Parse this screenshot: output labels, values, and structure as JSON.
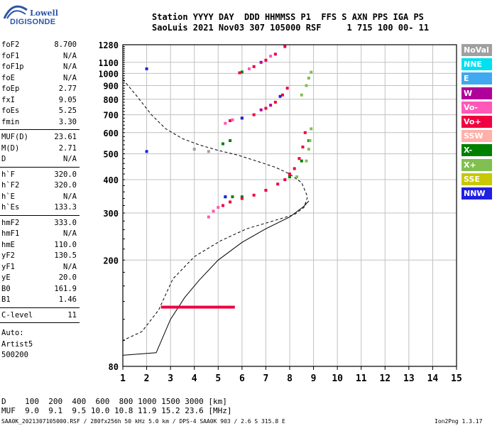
{
  "logo": {
    "line1": "Lowell",
    "line2": "DIGISONDE"
  },
  "header": {
    "row1": "Station YYYY DAY  DDD HHMMSS P1  FFS S AXN PPS IGA PS",
    "row2": "SaoLuis 2021 Nov03 307 105000 RSF     1 715 100 00- 11"
  },
  "params": [
    {
      "group": [
        {
          "k": "foF2",
          "v": "8.700"
        },
        {
          "k": "foF1",
          "v": "N/A"
        },
        {
          "k": "foF1p",
          "v": "N/A"
        },
        {
          "k": "foE",
          "v": "N/A"
        },
        {
          "k": "foEp",
          "v": "2.77"
        },
        {
          "k": "fxI",
          "v": "9.05"
        },
        {
          "k": "foEs",
          "v": "5.25"
        },
        {
          "k": "fmin",
          "v": "3.30"
        }
      ]
    },
    {
      "group": [
        {
          "k": "MUF(D)",
          "v": "23.61"
        },
        {
          "k": "M(D)",
          "v": "2.71"
        },
        {
          "k": "D",
          "v": "N/A"
        }
      ]
    },
    {
      "group": [
        {
          "k": "h`F",
          "v": "320.0"
        },
        {
          "k": "h`F2",
          "v": "320.0"
        },
        {
          "k": "h`E",
          "v": "N/A"
        },
        {
          "k": "h`Es",
          "v": "133.3"
        }
      ]
    },
    {
      "group": [
        {
          "k": "hmF2",
          "v": "333.0"
        },
        {
          "k": "hmF1",
          "v": "N/A"
        },
        {
          "k": "hmE",
          "v": "110.0"
        },
        {
          "k": "yF2",
          "v": "130.5"
        },
        {
          "k": "yF1",
          "v": "N/A"
        },
        {
          "k": "yE",
          "v": "20.0"
        },
        {
          "k": "B0",
          "v": "161.9"
        },
        {
          "k": "B1",
          "v": "1.46"
        }
      ]
    },
    {
      "group": [
        {
          "k": "C-level",
          "v": "11"
        }
      ]
    }
  ],
  "autoscale": {
    "line1": "Auto:",
    "line2": "Artist5",
    "line3": "500200"
  },
  "legend": [
    {
      "label": "NoVal",
      "color": "#a0a0a0"
    },
    {
      "label": "NNE",
      "color": "#00e0f0"
    },
    {
      "label": "E",
      "color": "#40a8f0"
    },
    {
      "label": "W",
      "color": "#b0009c"
    },
    {
      "label": "Vo-",
      "color": "#ff58b8"
    },
    {
      "label": "Vo+",
      "color": "#f00040"
    },
    {
      "label": "SSW",
      "color": "#ffb0a8"
    },
    {
      "label": "X-",
      "color": "#008000"
    },
    {
      "label": "X+",
      "color": "#80c050"
    },
    {
      "label": "SSE",
      "color": "#c8c800"
    },
    {
      "label": "NNW",
      "color": "#2020e0"
    }
  ],
  "chart_data": {
    "type": "scatter",
    "title": "",
    "xlabel": "",
    "ylabel": "",
    "xlim": [
      1,
      15
    ],
    "ylim": [
      80,
      1280
    ],
    "x_ticks": [
      "1",
      "2",
      "3",
      "4",
      "5",
      "6",
      "7",
      "8",
      "9",
      "10",
      "11",
      "12",
      "13",
      "14",
      "15"
    ],
    "y_ticks": [
      "80",
      "200",
      "300",
      "400",
      "500",
      "600",
      "700",
      "800",
      "900",
      "1000",
      "1100",
      "1280"
    ],
    "y_scale": "log",
    "grid": true,
    "series": [
      {
        "name": "X-",
        "color": "#008000",
        "points": [
          [
            5.3,
            345
          ],
          [
            5.6,
            345
          ],
          [
            6.0,
            345
          ],
          [
            5.2,
            545
          ],
          [
            5.5,
            560
          ],
          [
            6.0,
            1012
          ],
          [
            8.0,
            410
          ],
          [
            8.5,
            470
          ],
          [
            8.8,
            560
          ]
        ]
      },
      {
        "name": "X+",
        "color": "#80c050",
        "points": [
          [
            8.7,
            470
          ],
          [
            8.8,
            520
          ],
          [
            8.85,
            560
          ],
          [
            8.9,
            620
          ],
          [
            8.3,
            410
          ],
          [
            8.5,
            830
          ],
          [
            8.7,
            900
          ],
          [
            8.8,
            960
          ],
          [
            8.9,
            1010
          ]
        ]
      },
      {
        "name": "Vo+",
        "color": "#f00040",
        "points": [
          [
            5.2,
            320
          ],
          [
            5.5,
            330
          ],
          [
            6.0,
            340
          ],
          [
            6.5,
            350
          ],
          [
            7.0,
            365
          ],
          [
            7.5,
            385
          ],
          [
            7.8,
            400
          ],
          [
            8.0,
            420
          ],
          [
            8.2,
            440
          ],
          [
            8.4,
            480
          ],
          [
            8.55,
            530
          ],
          [
            8.65,
            600
          ],
          [
            5.5,
            665
          ],
          [
            6.0,
            680
          ],
          [
            6.5,
            700
          ],
          [
            7.0,
            740
          ],
          [
            7.4,
            780
          ],
          [
            7.7,
            830
          ],
          [
            7.9,
            880
          ],
          [
            5.9,
            1005
          ],
          [
            6.5,
            1060
          ],
          [
            7.0,
            1120
          ],
          [
            7.4,
            1180
          ],
          [
            7.8,
            1260
          ]
        ]
      },
      {
        "name": "Vo-",
        "color": "#ff58b8",
        "points": [
          [
            4.6,
            290
          ],
          [
            4.8,
            305
          ],
          [
            5.0,
            315
          ],
          [
            5.3,
            650
          ],
          [
            5.6,
            670
          ],
          [
            6.3,
            1040
          ],
          [
            7.2,
            1160
          ]
        ]
      },
      {
        "name": "NNW",
        "color": "#2020e0",
        "points": [
          [
            5.3,
            345
          ],
          [
            6.0,
            680
          ],
          [
            7.6,
            820
          ],
          [
            2.0,
            1040
          ],
          [
            2.0,
            510
          ]
        ]
      },
      {
        "name": "W",
        "color": "#b0009c",
        "points": [
          [
            6.8,
            730
          ],
          [
            7.2,
            760
          ],
          [
            6.8,
            1100
          ]
        ]
      },
      {
        "name": "NoVal",
        "color": "#a0a0a0",
        "points": [
          [
            4.0,
            520
          ],
          [
            4.6,
            510
          ]
        ]
      }
    ],
    "es_trace": {
      "name": "Es",
      "x": [
        2.6,
        5.7
      ],
      "y": 133.3
    }
  },
  "dist_table": {
    "row_d": "D    100  200  400  600  800 1000 1500 3000 [km]",
    "row_muf": "MUF  9.0  9.1  9.5 10.0 10.8 11.9 15.2 23.6 [MHz]"
  },
  "footer": {
    "left": "SAA0K_2021307105000.RSF / 280fx256h 50 kHz 5.0 km / DPS-4 SAA0K 903 / 2.6 S 315.8 E",
    "right": "Ion2Png 1.3.17"
  }
}
